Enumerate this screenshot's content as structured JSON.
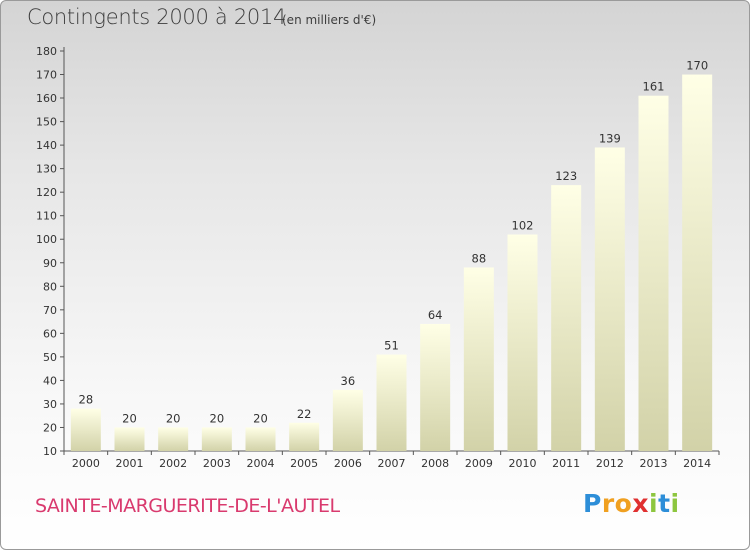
{
  "header": {
    "title": "Contingents 2000 à 2014",
    "unit": "(en milliers d'€)"
  },
  "footer": {
    "commune": "SAINTE-MARGUERITE-DE-L'AUTEL",
    "logo": {
      "letters": [
        "P",
        "r",
        "o",
        "x",
        "i",
        "t",
        "i"
      ],
      "colors": [
        "#2d8ed8",
        "#f0a020",
        "#f0a020",
        "#e03030",
        "#8dc63f",
        "#2d8ed8",
        "#8dc63f"
      ]
    }
  },
  "colors": {
    "title": "#3d3d3d",
    "commune": "#d93a6e",
    "bar_top": "#ffffe6",
    "bar_bottom": "#d2d2a8",
    "axis": "#555555"
  },
  "chart_data": {
    "type": "bar",
    "title": "Contingents 2000 à 2014",
    "subtitle": "(en milliers d'€)",
    "categories": [
      "2000",
      "2001",
      "2002",
      "2003",
      "2004",
      "2005",
      "2006",
      "2007",
      "2008",
      "2009",
      "2010",
      "2011",
      "2012",
      "2013",
      "2014"
    ],
    "values": [
      28,
      20,
      20,
      20,
      20,
      22,
      36,
      51,
      64,
      88,
      102,
      123,
      139,
      161,
      170
    ],
    "ylim": [
      10,
      180
    ],
    "yticks": [
      10,
      20,
      30,
      40,
      50,
      60,
      70,
      80,
      90,
      100,
      110,
      120,
      130,
      140,
      150,
      160,
      170,
      180
    ],
    "xlabel": "",
    "ylabel": "",
    "grid": false
  }
}
